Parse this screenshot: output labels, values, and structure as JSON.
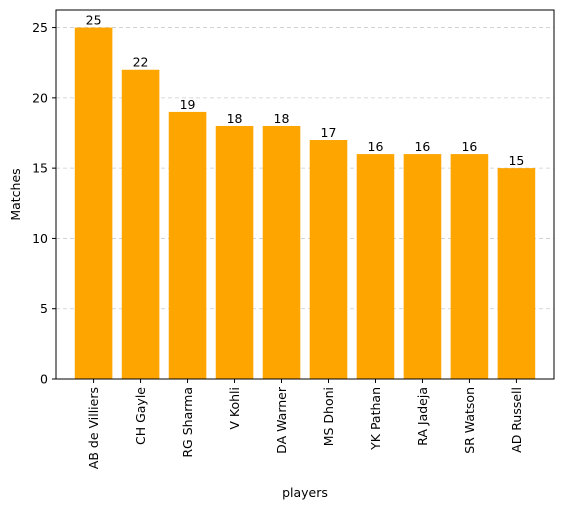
{
  "chart_data": {
    "type": "bar",
    "title": "",
    "xlabel": "players",
    "ylabel": "Matches",
    "categories": [
      "AB de Villiers",
      "CH Gayle",
      "RG Sharma",
      "V Kohli",
      "DA Warner",
      "MS Dhoni",
      "YK Pathan",
      "RA Jadeja",
      "SR Watson",
      "AD Russell"
    ],
    "values": [
      25,
      22,
      19,
      18,
      18,
      17,
      16,
      16,
      16,
      15
    ],
    "ylim": [
      0,
      26.25
    ],
    "yticks": [
      0,
      5,
      10,
      15,
      20,
      25
    ],
    "grid": "y-dashed",
    "bar_color": "#ffa500",
    "grid_color": "#cccccc",
    "show_data_labels": true
  }
}
